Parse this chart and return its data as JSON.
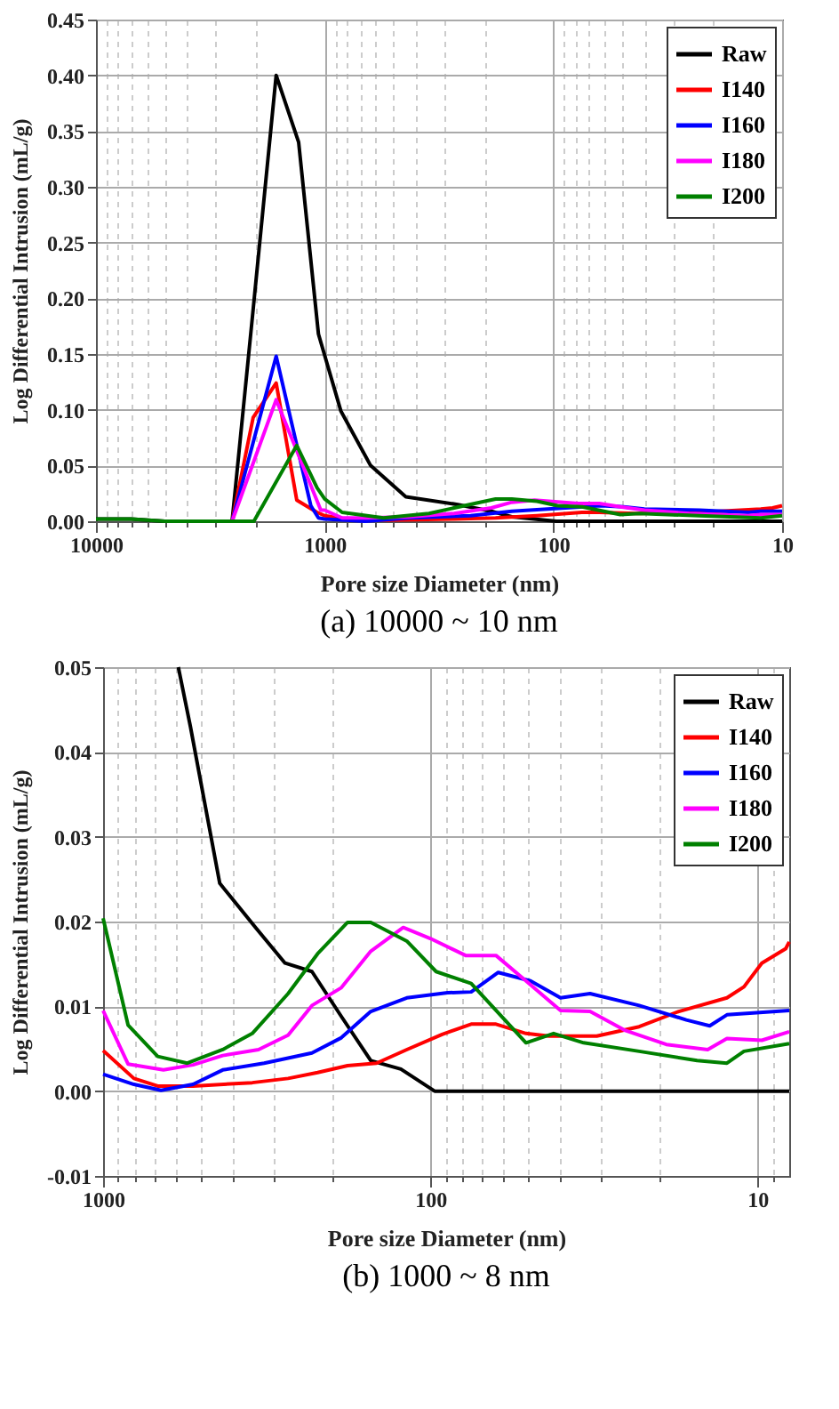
{
  "chart_data": [
    {
      "type": "line",
      "xlabel": "Pore size Diameter (nm)",
      "ylabel": "Log Differential Intrusion (mL/g)",
      "annotations": [
        "(a) 10000 ~ 10 nm"
      ],
      "log": "x",
      "grid": true,
      "legend": "top right",
      "line_style": "solid",
      "marker": "none",
      "xlim": [
        10000,
        10
      ],
      "xticks": [
        10000,
        {
          "value": 9000,
          "label": null
        },
        {
          "value": 8000,
          "label": null
        },
        {
          "value": 7000,
          "label": null
        },
        {
          "value": 6000,
          "label": null
        },
        {
          "value": 5000,
          "label": null
        },
        {
          "value": 4000,
          "label": null
        },
        {
          "value": 3000,
          "label": null
        },
        {
          "value": 2000,
          "label": null
        },
        1000,
        {
          "value": 900,
          "label": null
        },
        {
          "value": 800,
          "label": null
        },
        {
          "value": 700,
          "label": null
        },
        {
          "value": 600,
          "label": null
        },
        {
          "value": 500,
          "label": null
        },
        {
          "value": 400,
          "label": null
        },
        {
          "value": 300,
          "label": null
        },
        {
          "value": 200,
          "label": null
        },
        100,
        {
          "value": 90,
          "label": null
        },
        {
          "value": 80,
          "label": null
        },
        {
          "value": 70,
          "label": null
        },
        {
          "value": 60,
          "label": null
        },
        {
          "value": 50,
          "label": null
        },
        {
          "value": 40,
          "label": null
        },
        {
          "value": 30,
          "label": null
        },
        {
          "value": 20,
          "label": null
        },
        10
      ],
      "ylim": [
        0,
        0.45
      ],
      "yticks": [
        {
          "value": 0,
          "label": "0.00"
        },
        {
          "value": 0.05,
          "label": "0.05"
        },
        {
          "value": 0.1,
          "label": "0.10"
        },
        {
          "value": 0.15,
          "label": "0.15"
        },
        {
          "value": 0.2,
          "label": "0.20"
        },
        {
          "value": 0.25,
          "label": "0.25"
        },
        {
          "value": 0.3,
          "label": "0.30"
        },
        {
          "value": 0.35,
          "label": "0.35"
        },
        {
          "value": 0.4,
          "label": "0.40"
        },
        {
          "value": 0.45,
          "label": "0.45"
        }
      ],
      "series": [
        {
          "name": "Raw",
          "color": "#000000",
          "x": [
            10000,
            7000,
            5000,
            2540,
            2055,
            1630,
            1300,
            1065,
            850,
            630,
            442,
            262,
            187,
            152,
            97,
            50,
            10
          ],
          "values": [
            0.002,
            0.002,
            0,
            0,
            0.19,
            0.4,
            0.34,
            0.168,
            0.099,
            0.05,
            0.022,
            0.015,
            0.009,
            0.004,
            0,
            0,
            0
          ]
        },
        {
          "name": "I140",
          "color": "#ff0000",
          "x": [
            5000,
            2540,
            2055,
            1630,
            1325,
            1080,
            1000,
            805,
            531,
            272,
            179,
            118,
            75,
            63,
            43.4,
            23,
            12.4,
            11,
            10
          ],
          "values": [
            0,
            0,
            0.093,
            0.124,
            0.019,
            0.008,
            0.005,
            0.002,
            0.001,
            0.002,
            0.003,
            0.005,
            0.008,
            0.008,
            0.007,
            0.008,
            0.011,
            0.012,
            0.014
          ]
        },
        {
          "name": "I160",
          "color": "#0000ff",
          "x": [
            5000,
            2540,
            1630,
            1150,
            1065,
            1000,
            805,
            665,
            431,
            230,
            152,
            88.5,
            62,
            49.4,
            40,
            23,
            14,
            12.4,
            10
          ],
          "values": [
            0,
            0,
            0.148,
            0.014,
            0.003,
            0.002,
            0.001,
            0,
            0.003,
            0.005,
            0.009,
            0.012,
            0.014,
            0.013,
            0.011,
            0.01,
            0.008,
            0.009,
            0.009
          ]
        },
        {
          "name": "I180",
          "color": "#ff00ff",
          "x": [
            5000,
            2540,
            1630,
            1040,
            1000,
            839,
            654,
            431,
            272,
            187,
            152,
            121,
            78,
            63,
            51,
            40,
            25.5,
            14.2,
            12.4,
            10
          ],
          "values": [
            0,
            0,
            0.109,
            0.01,
            0.01,
            0.003,
            0.003,
            0.004,
            0.007,
            0.012,
            0.017,
            0.019,
            0.016,
            0.016,
            0.013,
            0.01,
            0.007,
            0.005,
            0.006,
            0.006
          ]
        },
        {
          "name": "I200",
          "color": "#008000",
          "x": [
            10000,
            7000,
            5000,
            2040,
            1325,
            1080,
            1000,
            839,
            553,
            350,
            221,
            179,
            152,
            118,
            96,
            75,
            51,
            42,
            23,
            12.4,
            10
          ],
          "values": [
            0.002,
            0.002,
            0,
            0,
            0.068,
            0.03,
            0.02,
            0.008,
            0.003,
            0.007,
            0.016,
            0.02,
            0.02,
            0.018,
            0.014,
            0.013,
            0.006,
            0.007,
            0.005,
            0.003,
            0.005
          ]
        }
      ]
    },
    {
      "type": "line",
      "xlabel": "Pore size Diameter (nm)",
      "ylabel": "Log Differential Intrusion (mL/g)",
      "annotations": [
        "(b) 1000 ~ 8 nm"
      ],
      "log": "x",
      "grid": true,
      "legend": "top right",
      "line_style": "solid",
      "marker": "none",
      "xlim": [
        1000,
        8
      ],
      "xticks": [
        1000,
        {
          "value": 900,
          "label": null
        },
        {
          "value": 800,
          "label": null
        },
        {
          "value": 700,
          "label": null
        },
        {
          "value": 600,
          "label": null
        },
        {
          "value": 500,
          "label": null
        },
        {
          "value": 400,
          "label": null
        },
        {
          "value": 300,
          "label": null
        },
        {
          "value": 200,
          "label": null
        },
        100,
        {
          "value": 90,
          "label": null
        },
        {
          "value": 80,
          "label": null
        },
        {
          "value": 70,
          "label": null
        },
        {
          "value": 60,
          "label": null
        },
        {
          "value": 50,
          "label": null
        },
        {
          "value": 40,
          "label": null
        },
        {
          "value": 30,
          "label": null
        },
        {
          "value": 20,
          "label": null
        },
        10,
        {
          "value": 9,
          "label": null
        }
      ],
      "ylim": [
        -0.01,
        0.05
      ],
      "yticks": [
        {
          "value": -0.01,
          "label": "-0.01"
        },
        {
          "value": 0,
          "label": "0.00"
        },
        {
          "value": 0.01,
          "label": "0.01"
        },
        {
          "value": 0.02,
          "label": "0.02"
        },
        {
          "value": 0.03,
          "label": "0.03"
        },
        {
          "value": 0.04,
          "label": "0.04"
        },
        {
          "value": 0.05,
          "label": "0.05"
        }
      ],
      "series": [
        {
          "name": "Raw",
          "color": "#000000",
          "x": [
            589,
            541,
            440,
            342,
            278,
            230,
            187,
            152,
            123,
            97,
            8
          ],
          "values": [
            0.05,
            0.043,
            0.0245,
            0.0193,
            0.0151,
            0.0141,
            0.0088,
            0.0036,
            0.0026,
            0,
            0
          ]
        },
        {
          "name": "I140",
          "color": "#ff0000",
          "x": [
            1000,
            805,
            681,
            531,
            350,
            272,
            221,
            179,
            146,
            118,
            92,
            75,
            63,
            51,
            43.4,
            31,
            23,
            17.4,
            12.4,
            11,
            9.7,
            8.2,
            8
          ],
          "values": [
            0.0048,
            0.0015,
            0.0006,
            0.0006,
            0.001,
            0.0015,
            0.0022,
            0.003,
            0.0033,
            0.0049,
            0.0067,
            0.0079,
            0.0079,
            0.0068,
            0.0065,
            0.0065,
            0.0076,
            0.0094,
            0.011,
            0.0123,
            0.0151,
            0.0168,
            0.0176
          ]
        },
        {
          "name": "I160",
          "color": "#0000ff",
          "x": [
            1000,
            805,
            665,
            531,
            431,
            322,
            230,
            187,
            152,
            118,
            88.5,
            75,
            62,
            49.4,
            40,
            32.5,
            23,
            16.5,
            14,
            12.4,
            8
          ],
          "values": [
            0.002,
            0.0008,
            0.0001,
            0.0008,
            0.0025,
            0.0033,
            0.0045,
            0.0063,
            0.0094,
            0.011,
            0.0116,
            0.0117,
            0.014,
            0.013,
            0.011,
            0.0115,
            0.0101,
            0.0084,
            0.0077,
            0.009,
            0.0095
          ]
        },
        {
          "name": "I180",
          "color": "#ff00ff",
          "x": [
            1000,
            839,
            654,
            531,
            431,
            335,
            272,
            230,
            187,
            152,
            121,
            100,
            78,
            63,
            51,
            40,
            32.5,
            25.5,
            19,
            14.2,
            12.4,
            9.7,
            8
          ],
          "values": [
            0.0095,
            0.0032,
            0.0025,
            0.0031,
            0.0042,
            0.0049,
            0.0066,
            0.0101,
            0.0122,
            0.0165,
            0.0193,
            0.018,
            0.016,
            0.016,
            0.013,
            0.0095,
            0.0094,
            0.0072,
            0.0055,
            0.0049,
            0.0062,
            0.006,
            0.007
          ]
        },
        {
          "name": "I200",
          "color": "#008000",
          "x": [
            1000,
            839,
            681,
            553,
            431,
            350,
            272,
            221,
            179,
            152,
            118,
            96,
            75,
            51,
            42,
            34,
            23,
            15.3,
            12.4,
            11,
            8
          ],
          "values": [
            0.0204,
            0.0078,
            0.0041,
            0.0033,
            0.0049,
            0.0068,
            0.0115,
            0.0162,
            0.0199,
            0.0199,
            0.0177,
            0.0141,
            0.0127,
            0.0057,
            0.0068,
            0.0057,
            0.0047,
            0.0036,
            0.0033,
            0.0047,
            0.0056
          ]
        }
      ]
    }
  ]
}
